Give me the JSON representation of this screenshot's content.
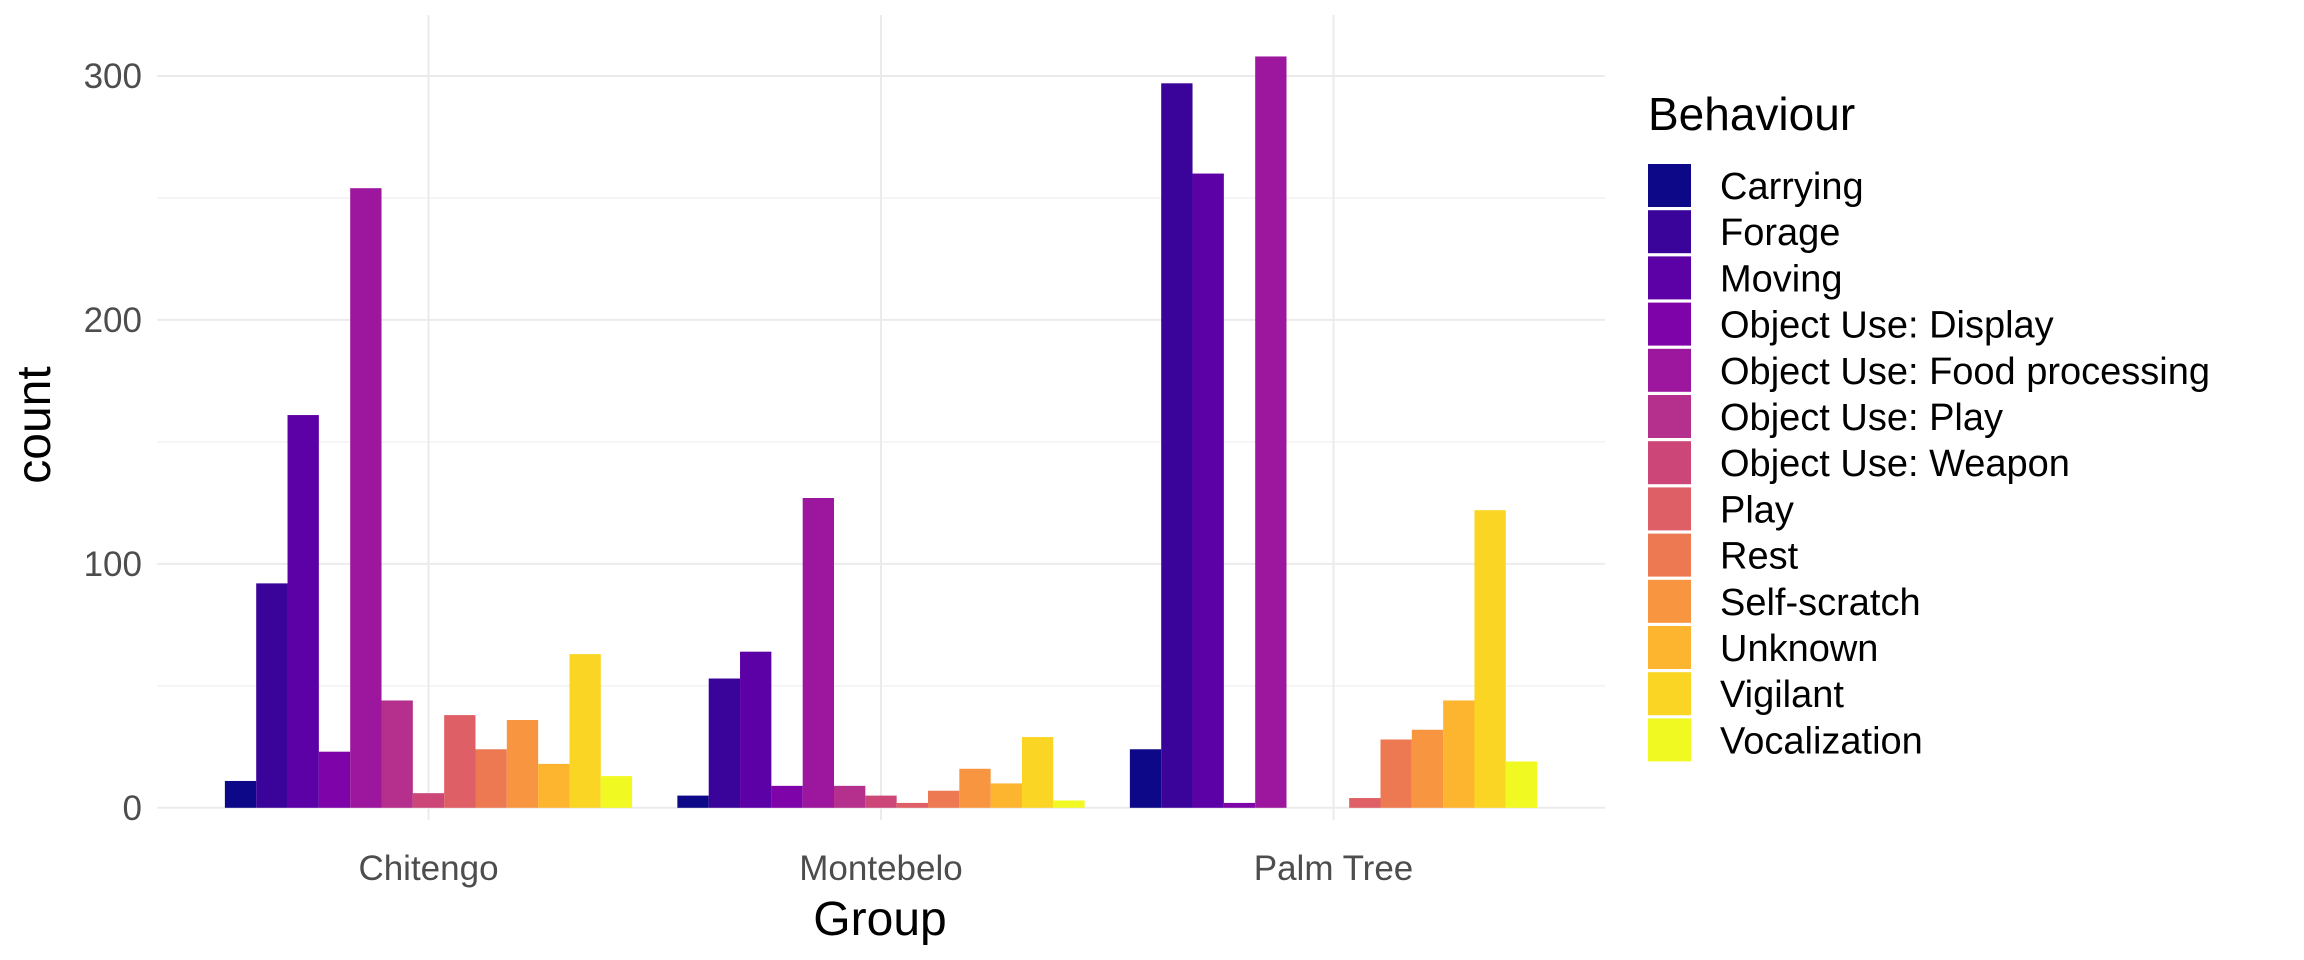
{
  "chart_data": {
    "type": "bar",
    "xlabel": "Group",
    "ylabel": "count",
    "ylim": [
      -5,
      325
    ],
    "yticks": [
      0,
      100,
      200,
      300
    ],
    "grid": true,
    "legend": {
      "title": "Behaviour",
      "position": "right"
    },
    "categories": [
      "Chitengo",
      "Montebelo",
      "Palm Tree"
    ],
    "series": [
      {
        "name": "Carrying",
        "color": "#0d0887",
        "values": [
          11,
          5,
          24
        ]
      },
      {
        "name": "Forage",
        "color": "#3a049a",
        "values": [
          92,
          53,
          297
        ]
      },
      {
        "name": "Moving",
        "color": "#5c01a6",
        "values": [
          161,
          64,
          260
        ]
      },
      {
        "name": "Object Use: Display",
        "color": "#7e03a8",
        "values": [
          23,
          9,
          2
        ]
      },
      {
        "name": "Object Use: Food processing",
        "color": "#9c179e",
        "values": [
          254,
          127,
          308
        ]
      },
      {
        "name": "Object Use: Play",
        "color": "#b52f8c",
        "values": [
          44,
          9,
          0
        ]
      },
      {
        "name": "Object Use: Weapon",
        "color": "#cc4778",
        "values": [
          6,
          5,
          0
        ]
      },
      {
        "name": "Play",
        "color": "#de5f65",
        "values": [
          38,
          2,
          4
        ]
      },
      {
        "name": "Rest",
        "color": "#ed7953",
        "values": [
          24,
          7,
          28
        ]
      },
      {
        "name": "Self-scratch",
        "color": "#f89540",
        "values": [
          36,
          16,
          32
        ]
      },
      {
        "name": "Unknown",
        "color": "#fdb42f",
        "values": [
          18,
          10,
          44
        ]
      },
      {
        "name": "Vigilant",
        "color": "#fbd524",
        "values": [
          63,
          29,
          122
        ]
      },
      {
        "name": "Vocalization",
        "color": "#f0f921",
        "values": [
          13,
          3,
          19
        ]
      }
    ]
  }
}
